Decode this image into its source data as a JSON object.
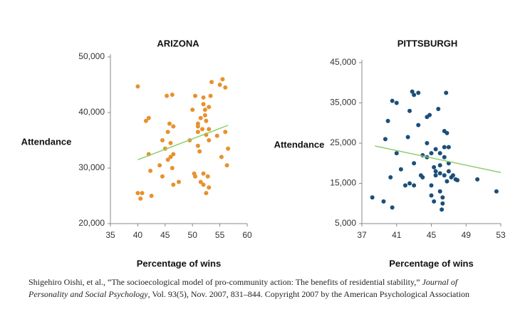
{
  "chart_data": [
    {
      "type": "scatter",
      "title": "ARIZONA",
      "x_label": "Percentage of wins",
      "y_label": "Attendance",
      "color": "#e8912d",
      "xlim": [
        35,
        60
      ],
      "xticks": [
        35,
        40,
        45,
        50,
        55,
        60
      ],
      "ylim": [
        20000,
        50000
      ],
      "yticks": [
        {
          "value": 20000,
          "label": "20,000"
        },
        {
          "value": 30000,
          "label": "30,000"
        },
        {
          "value": 40000,
          "label": "40,000"
        },
        {
          "value": 50000,
          "label": "50,000"
        }
      ],
      "x": [
        40,
        40,
        40.5,
        40.8,
        41.5,
        42,
        42,
        42.3,
        42.5,
        44,
        44.5,
        44.5,
        45,
        45.3,
        45.5,
        45.5,
        45.8,
        46,
        46,
        46.3,
        46.3,
        46.5,
        46.5,
        46.5,
        47.5,
        49.5,
        50,
        50.3,
        50.5,
        50.5,
        51,
        51,
        51,
        51,
        51.3,
        51.5,
        51.5,
        51.8,
        52,
        52,
        52,
        52,
        52.3,
        52.3,
        52.5,
        52.5,
        52.5,
        52.8,
        53,
        53,
        53,
        53,
        53.3,
        53.5,
        54.5,
        55,
        55.3,
        55.5,
        56,
        56,
        56.3,
        56.5
      ],
      "values": [
        44700,
        25500,
        24500,
        25500,
        38500,
        39000,
        32500,
        29500,
        25000,
        30500,
        35000,
        28500,
        33500,
        43000,
        31500,
        36500,
        38000,
        32000,
        34500,
        30000,
        43200,
        37500,
        32500,
        27000,
        27500,
        35000,
        40500,
        29000,
        28500,
        43000,
        36500,
        37500,
        34000,
        38000,
        33000,
        39000,
        27500,
        37000,
        41500,
        42700,
        29000,
        27000,
        39500,
        40500,
        36000,
        38500,
        25500,
        28500,
        37000,
        41000,
        35000,
        26500,
        43000,
        45500,
        35800,
        45000,
        32000,
        46000,
        36500,
        44500,
        30500,
        33500
      ],
      "trend_line": {
        "color": "#8fcf6e",
        "x": [
          40,
          56.5
        ],
        "values": [
          31500,
          37700
        ]
      }
    },
    {
      "type": "scatter",
      "title": "PITTSBURGH",
      "x_label": "Percentage of wins",
      "y_label": "Attendance",
      "color": "#1b4f7a",
      "xlim": [
        37,
        53
      ],
      "xticks": [
        37,
        41,
        45,
        49,
        53
      ],
      "ylim": [
        5000,
        45000
      ],
      "yticks": [
        {
          "value": 5000,
          "label": "5,000"
        },
        {
          "value": 15000,
          "label": "15,000"
        },
        {
          "value": 25000,
          "label": "25,000"
        },
        {
          "value": 35000,
          "label": "35,000"
        },
        {
          "value": 45000,
          "label": "45,000"
        }
      ],
      "x": [
        38.2,
        39.5,
        39.7,
        40,
        40.3,
        40.5,
        40.5,
        41,
        41,
        41.5,
        42,
        42.3,
        42.5,
        42.5,
        42.8,
        43,
        43,
        43,
        43.5,
        43.5,
        43.8,
        44,
        44,
        44.5,
        44.5,
        44.5,
        44.8,
        45,
        45,
        45,
        45.3,
        45.3,
        45.5,
        45.5,
        45.5,
        45.8,
        46,
        46,
        46,
        46,
        46.2,
        46.3,
        46.3,
        46.5,
        46.5,
        46.5,
        46.5,
        46.7,
        46.8,
        46.8,
        47,
        47,
        47,
        47.3,
        47.5,
        47.8,
        48,
        50.3,
        52.5
      ],
      "values": [
        11500,
        10500,
        26000,
        30500,
        16500,
        35500,
        9000,
        35000,
        22500,
        18500,
        14500,
        26500,
        15000,
        33000,
        37800,
        20000,
        37000,
        14500,
        37500,
        29500,
        17000,
        22000,
        16500,
        31500,
        21500,
        25000,
        32000,
        22500,
        14500,
        12000,
        19000,
        10500,
        23500,
        18000,
        17000,
        33500,
        22500,
        19500,
        17500,
        13000,
        8500,
        11500,
        10000,
        21500,
        24000,
        17000,
        28000,
        37500,
        27500,
        15500,
        24000,
        18000,
        20000,
        16500,
        17000,
        16000,
        15800,
        16000,
        13000
      ],
      "trend_line": {
        "color": "#8fcf6e",
        "x": [
          38.5,
          53
        ],
        "values": [
          24300,
          17700
        ]
      }
    }
  ],
  "source": {
    "before": "Shigehiro Oishi, et al., “The socioecological model of pro-community action: The benefits of residential stability,” ",
    "journal": "Journal of Personality and Social Psychology",
    "after": ", Vol. 93(5), Nov. 2007, 831–844. Copyright 2007 by the American Psychological Association"
  }
}
